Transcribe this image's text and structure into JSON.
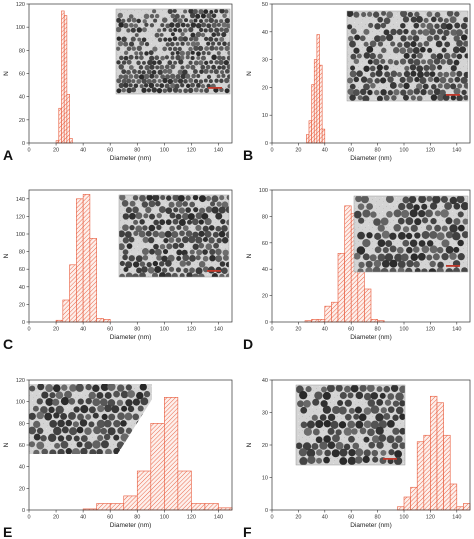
{
  "figure_colors": {
    "bar_stroke": "#e8593a",
    "axis": "#333333"
  },
  "chart_data": [
    {
      "panel": "A",
      "type": "bar",
      "xlabel": "Diameter (nm)",
      "ylabel": "N",
      "xlim": [
        0,
        150
      ],
      "ylim": [
        0,
        120
      ],
      "xticks": [
        0,
        20,
        40,
        60,
        80,
        100,
        120,
        140
      ],
      "yticks": [
        0,
        20,
        40,
        60,
        80,
        100,
        120
      ],
      "bin_width": 2,
      "bins": [
        20,
        22,
        24,
        26,
        28,
        30
      ],
      "values": [
        2,
        30,
        114,
        110,
        42,
        4
      ],
      "inset": {
        "scale_bar_color": "#c0392b",
        "particle_size": "small"
      }
    },
    {
      "panel": "B",
      "type": "bar",
      "xlabel": "Diameter (nm)",
      "ylabel": "N",
      "xlim": [
        0,
        150
      ],
      "ylim": [
        0,
        50
      ],
      "xticks": [
        0,
        20,
        40,
        60,
        80,
        100,
        120,
        140
      ],
      "yticks": [
        0,
        10,
        20,
        30,
        40,
        50
      ],
      "bin_width": 2,
      "bins": [
        26,
        28,
        30,
        32,
        34,
        36,
        38
      ],
      "values": [
        3,
        8,
        21,
        30,
        39,
        28,
        5
      ],
      "inset": {
        "scale_bar_color": "#c0392b",
        "particle_size": "medium"
      }
    },
    {
      "panel": "C",
      "type": "bar",
      "xlabel": "Diameter (nm)",
      "ylabel": "N",
      "xlim": [
        0,
        150
      ],
      "ylim": [
        0,
        150
      ],
      "xticks": [
        0,
        20,
        40,
        60,
        80,
        100,
        120,
        140
      ],
      "yticks": [
        0,
        20,
        40,
        60,
        80,
        100,
        120,
        140
      ],
      "bin_width": 5,
      "bins": [
        20,
        25,
        30,
        35,
        40,
        45,
        50,
        55
      ],
      "values": [
        2,
        25,
        65,
        140,
        145,
        95,
        4,
        3
      ],
      "inset": {
        "scale_bar_color": "#c0392b",
        "particle_size": "medium"
      }
    },
    {
      "panel": "D",
      "type": "bar",
      "xlabel": "Diameter (nm)",
      "ylabel": "N",
      "xlim": [
        0,
        150
      ],
      "ylim": [
        0,
        100
      ],
      "xticks": [
        0,
        20,
        40,
        60,
        80,
        100,
        120,
        140
      ],
      "yticks": [
        0,
        20,
        40,
        60,
        80,
        100
      ],
      "bin_width": 5,
      "bins": [
        25,
        30,
        35,
        40,
        45,
        50,
        55,
        60,
        65,
        70,
        75,
        80
      ],
      "values": [
        1,
        2,
        2,
        12,
        15,
        52,
        88,
        82,
        70,
        25,
        2,
        1
      ],
      "inset": {
        "scale_bar_color": "#c0392b",
        "particle_size": "large"
      }
    },
    {
      "panel": "E",
      "type": "bar",
      "xlabel": "Diameter (nm)",
      "ylabel": "N",
      "xlim": [
        0,
        150
      ],
      "ylim": [
        0,
        120
      ],
      "xticks": [
        0,
        20,
        40,
        60,
        80,
        100,
        120,
        140
      ],
      "yticks": [
        0,
        20,
        40,
        60,
        80,
        100,
        120
      ],
      "bin_width": 10,
      "bins": [
        40,
        50,
        60,
        70,
        80,
        90,
        100,
        110,
        120,
        130,
        140
      ],
      "values": [
        1,
        6,
        6,
        13,
        36,
        80,
        104,
        36,
        6,
        6,
        2
      ],
      "inset": {
        "scale_bar_color": "#c0392b",
        "particle_size": "large"
      }
    },
    {
      "panel": "F",
      "type": "bar",
      "xlabel": "Diameter (nm)",
      "ylabel": "N",
      "xlim": [
        0,
        150
      ],
      "ylim": [
        0,
        40
      ],
      "xticks": [
        0,
        20,
        40,
        60,
        80,
        100,
        120,
        140
      ],
      "yticks": [
        0,
        10,
        20,
        30,
        40
      ],
      "bin_width": 5,
      "bins": [
        95,
        100,
        105,
        110,
        115,
        120,
        125,
        130,
        135,
        140,
        145
      ],
      "values": [
        1,
        4,
        7,
        21,
        23,
        35,
        33,
        23,
        8,
        1,
        2
      ],
      "inset": {
        "scale_bar_color": "#c0392b",
        "particle_size": "large"
      }
    }
  ]
}
